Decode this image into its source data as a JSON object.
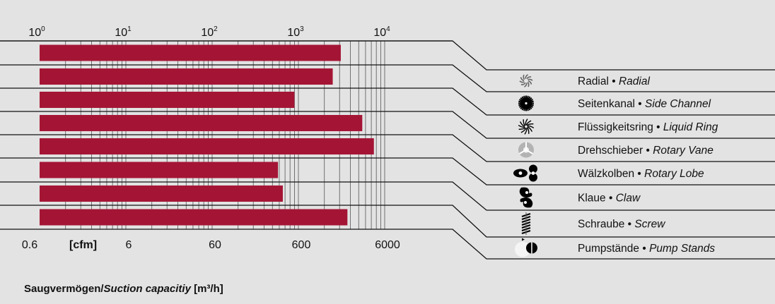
{
  "chart_data": {
    "type": "bar",
    "orientation": "horizontal",
    "scale": "log",
    "xlim": [
      0.6,
      10000
    ],
    "top_axis": {
      "ticks": [
        {
          "base": "10",
          "exp": "0",
          "value": 1
        },
        {
          "base": "10",
          "exp": "1",
          "value": 10
        },
        {
          "base": "10",
          "exp": "2",
          "value": 100
        },
        {
          "base": "10",
          "exp": "3",
          "value": 1000
        },
        {
          "base": "10",
          "exp": "4",
          "value": 10000
        }
      ]
    },
    "bottom_axis": {
      "unit_label": "[cfm]",
      "ticks": [
        {
          "label": "0.6",
          "value": 1
        },
        {
          "label": "6",
          "value": 10
        },
        {
          "label": "60",
          "value": 100
        },
        {
          "label": "600",
          "value": 1000
        },
        {
          "label": "6000",
          "value": 10000
        }
      ]
    },
    "title": {
      "de": "Saugvermögen",
      "sep": "/",
      "en": "Suction capacitiy",
      "unit": "[m³/h]"
    },
    "grid_lines": [
      2,
      3,
      4,
      5,
      6,
      7,
      8,
      9,
      10,
      20,
      30,
      40,
      50,
      60,
      70,
      80,
      90,
      100,
      200,
      300,
      400,
      500,
      600,
      700,
      800,
      900,
      1000,
      2000,
      3000,
      4000,
      5000,
      6000,
      7000,
      8000,
      9000,
      10000
    ],
    "bar_color": "#a41535",
    "series": [
      {
        "de": "Radial",
        "en": "Radial",
        "icon": "radial-fan-icon",
        "range": [
          0.6,
          3100
        ]
      },
      {
        "de": "Seitenkanal",
        "en": "Side Channel",
        "icon": "side-channel-impeller-icon",
        "range": [
          0.6,
          2500
        ]
      },
      {
        "de": "Flüssigkeitsring",
        "en": "Liquid Ring",
        "icon": "liquid-ring-impeller-icon",
        "range": [
          0.6,
          900
        ]
      },
      {
        "de": "Drehschieber",
        "en": "Rotary Vane",
        "icon": "rotary-vane-icon",
        "range": [
          0.6,
          5500
        ]
      },
      {
        "de": "Wälzkolben",
        "en": "Rotary Lobe",
        "icon": "rotary-lobe-icon",
        "range": [
          0.6,
          7500
        ]
      },
      {
        "de": "Klaue",
        "en": "Claw",
        "icon": "claw-rotor-icon",
        "range": [
          0.6,
          580
        ]
      },
      {
        "de": "Schraube",
        "en": "Screw",
        "icon": "screw-rotor-icon",
        "range": [
          0.6,
          660
        ]
      },
      {
        "de": "Pumpstände",
        "en": "Pump Stands",
        "icon": "pump-stand-icon",
        "range": [
          0.6,
          3700
        ]
      }
    ],
    "bullet": "•"
  }
}
